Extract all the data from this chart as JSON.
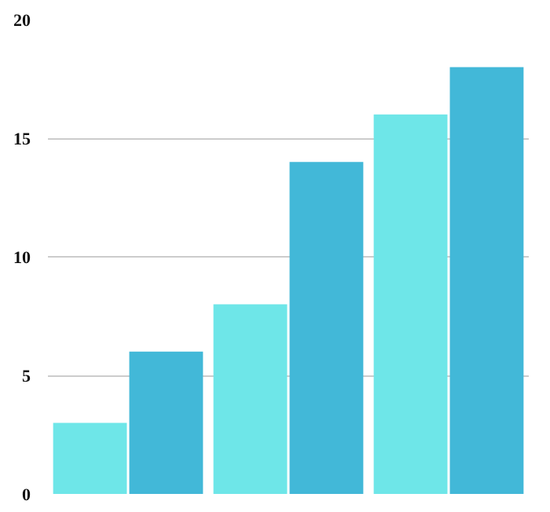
{
  "chart_data": {
    "type": "bar",
    "categories": [
      null,
      null,
      null
    ],
    "series": [
      {
        "color": "#6ee6e8",
        "values": [
          3,
          8,
          16
        ]
      },
      {
        "color": "#42b8d8",
        "values": [
          6,
          14,
          18
        ]
      }
    ],
    "ylim": [
      0,
      20
    ],
    "yticks": [
      0,
      5,
      10,
      15,
      20
    ],
    "grid": "y",
    "tick_labels": "y"
  }
}
